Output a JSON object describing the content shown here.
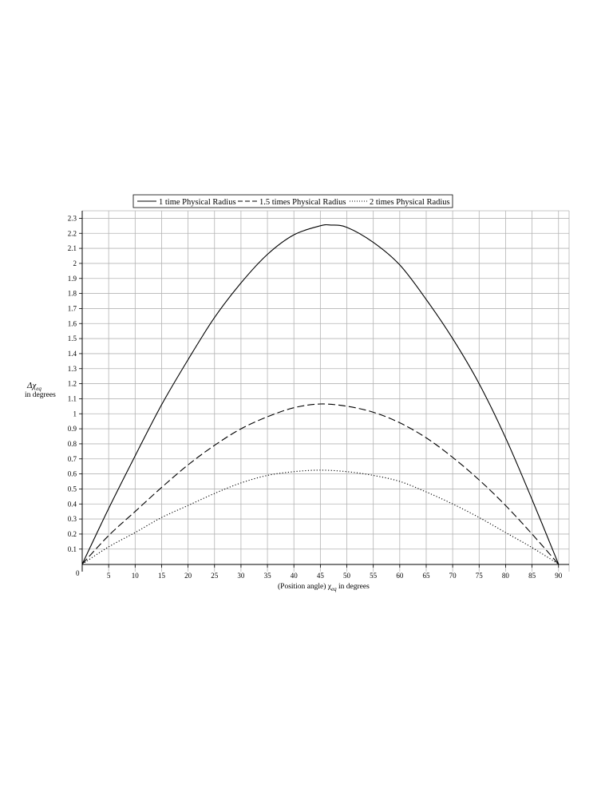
{
  "chart_data": {
    "type": "line",
    "title": "",
    "xlabel": {
      "main": "(Position angle) χ",
      "sub": "eq",
      "tail": "  in degrees"
    },
    "ylabel": {
      "main": "Δχ",
      "sub": "eq",
      "line2": "in degrees"
    },
    "origin_label": "0",
    "xlim": [
      0,
      92
    ],
    "ylim": [
      -0.05,
      2.35
    ],
    "x_ticks": [
      5,
      10,
      15,
      20,
      25,
      30,
      35,
      40,
      45,
      50,
      55,
      60,
      65,
      70,
      75,
      80,
      85,
      90
    ],
    "x_tick_labels": [
      "5",
      "10",
      "15",
      "20",
      "25",
      "30",
      "35",
      "40",
      "45",
      "50",
      "55",
      "60",
      "65",
      "70",
      "75",
      "80",
      "85",
      "90"
    ],
    "y_ticks": [
      0.1,
      0.2,
      0.3,
      0.4,
      0.5,
      0.6,
      0.7,
      0.8,
      0.9,
      1,
      1.1,
      1.2,
      1.3,
      1.4,
      1.5,
      1.6,
      1.7,
      1.8,
      1.9,
      2,
      2.1,
      2.2,
      2.3
    ],
    "y_tick_labels": [
      "0.1",
      "0.2",
      "0.3",
      "0.4",
      "0.5",
      "0.6",
      "0.7",
      "0.8",
      "0.9",
      "1",
      "1.1",
      "1.2",
      "1.3",
      "1.4",
      "1.5",
      "1.6",
      "1.7",
      "1.8",
      "1.9",
      "2",
      "2.1",
      "2.2",
      "2.3"
    ],
    "grid": true,
    "legend_position": "top-center",
    "series": [
      {
        "name": "1 time Physical Radius",
        "style": "solid",
        "color": "#000000",
        "x": [
          0,
          5,
          10,
          15,
          20,
          25,
          30,
          35,
          40,
          45,
          47,
          50,
          55,
          60,
          65,
          70,
          75,
          80,
          85,
          90
        ],
        "y": [
          0,
          0.37,
          0.72,
          1.06,
          1.36,
          1.64,
          1.87,
          2.06,
          2.19,
          2.25,
          2.255,
          2.24,
          2.14,
          1.99,
          1.76,
          1.5,
          1.2,
          0.84,
          0.43,
          0
        ]
      },
      {
        "name": "1.5 times Physical Radius",
        "style": "dashed",
        "color": "#000000",
        "x": [
          0,
          5,
          10,
          15,
          20,
          25,
          30,
          35,
          40,
          45,
          50,
          55,
          60,
          65,
          70,
          75,
          80,
          85,
          90
        ],
        "y": [
          0,
          0.19,
          0.35,
          0.51,
          0.66,
          0.79,
          0.9,
          0.98,
          1.04,
          1.065,
          1.05,
          1.01,
          0.94,
          0.84,
          0.71,
          0.56,
          0.39,
          0.2,
          0
        ]
      },
      {
        "name": "2 times Physical Radius",
        "style": "dotted",
        "color": "#000000",
        "x": [
          0,
          5,
          10,
          15,
          20,
          25,
          30,
          35,
          40,
          45,
          50,
          55,
          60,
          65,
          70,
          75,
          80,
          85,
          90
        ],
        "y": [
          0,
          0.115,
          0.21,
          0.31,
          0.39,
          0.47,
          0.54,
          0.59,
          0.615,
          0.625,
          0.615,
          0.59,
          0.55,
          0.48,
          0.4,
          0.31,
          0.21,
          0.11,
          0
        ]
      }
    ]
  },
  "colors": {
    "grid": "#b4b4b4",
    "axis": "#000000",
    "background": "#ffffff"
  }
}
